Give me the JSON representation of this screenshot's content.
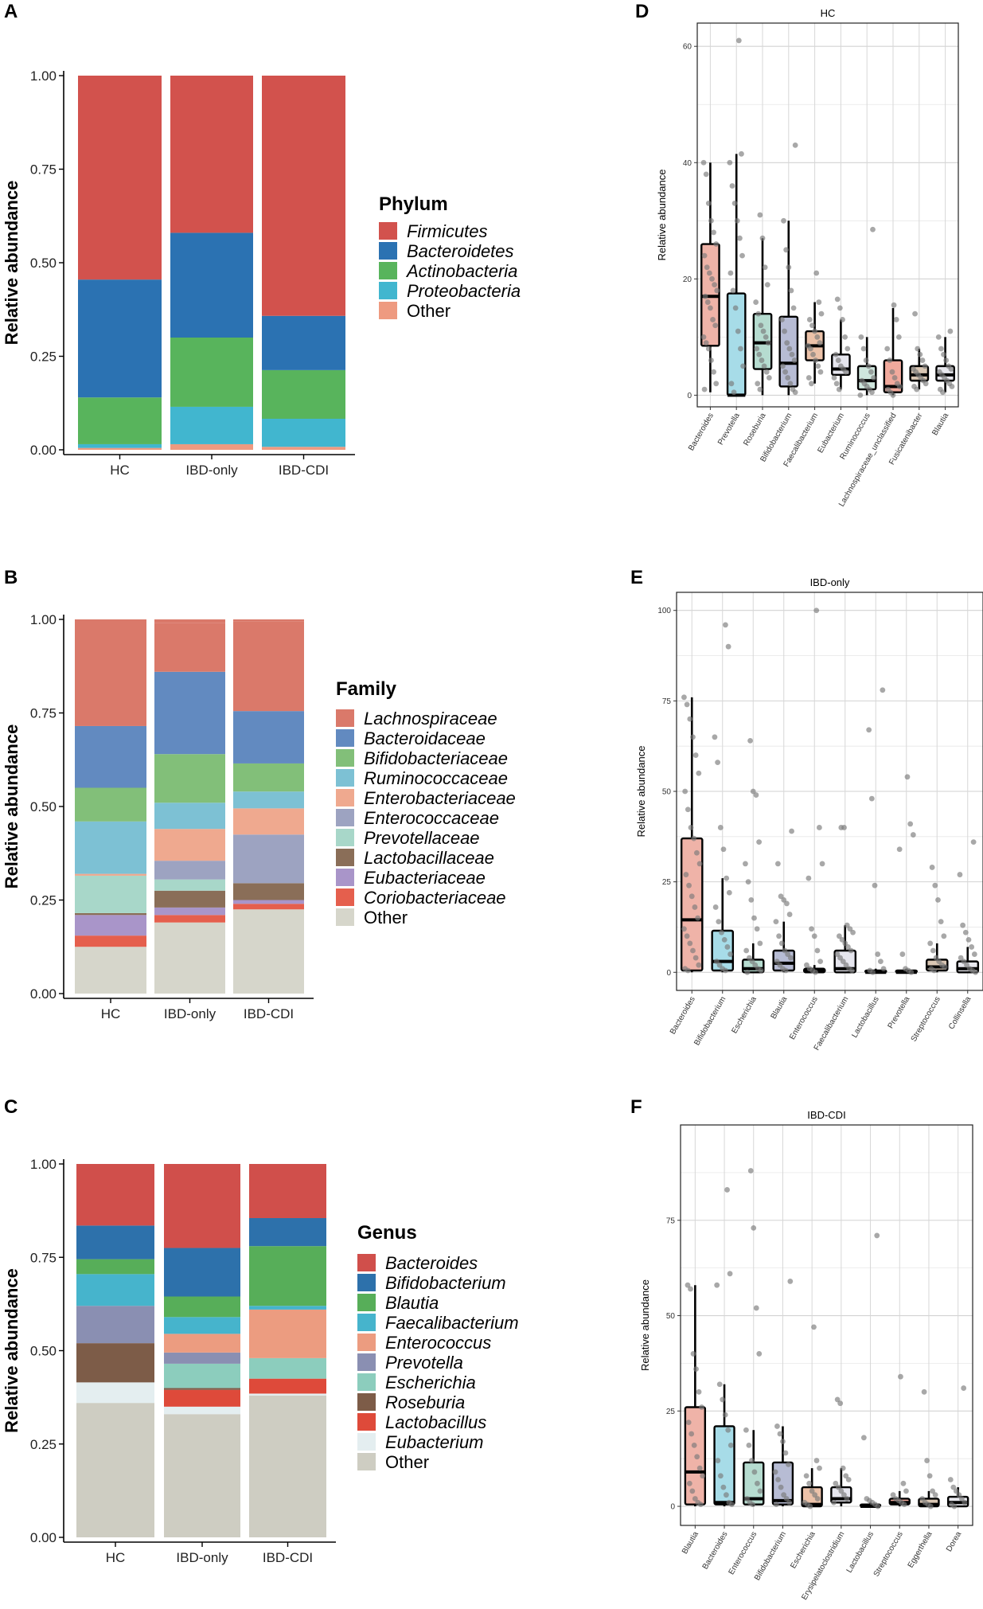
{
  "chart_data": [
    {
      "panel": "A",
      "type": "bar",
      "stacked": true,
      "ylabel": "Relative abundance",
      "ylim": [
        0,
        1
      ],
      "yticks": [
        "0.00",
        "0.25",
        "0.50",
        "0.75",
        "1.00"
      ],
      "categories": [
        "HC",
        "IBD-only",
        "IBD-CDI"
      ],
      "legend_title": "Phylum",
      "series": [
        {
          "name": "Other",
          "color": "#ee9a80",
          "values": [
            0.005,
            0.015,
            0.008
          ]
        },
        {
          "name": "Proteobacteria",
          "color": "#41b6cf",
          "values": [
            0.01,
            0.1,
            0.075
          ]
        },
        {
          "name": "Actinobacteria",
          "color": "#58b45c",
          "values": [
            0.125,
            0.185,
            0.13
          ]
        },
        {
          "name": "Bacteroidetes",
          "color": "#2b72b2",
          "values": [
            0.315,
            0.28,
            0.145
          ]
        },
        {
          "name": "Firmicutes",
          "color": "#d2524d",
          "values": [
            0.545,
            0.42,
            0.642
          ]
        }
      ]
    },
    {
      "panel": "B",
      "type": "bar",
      "stacked": true,
      "ylabel": "Relative abundance",
      "ylim": [
        0,
        1
      ],
      "yticks": [
        "0.00",
        "0.25",
        "0.50",
        "0.75",
        "1.00"
      ],
      "categories": [
        "HC",
        "IBD-only",
        "IBD-CDI"
      ],
      "legend_title": "Family",
      "series": [
        {
          "name": "Other",
          "color": "#d6d6cb",
          "values": [
            0.125,
            0.19,
            0.225
          ]
        },
        {
          "name": "Coriobacteriaceae",
          "color": "#e55f4d",
          "values": [
            0.03,
            0.02,
            0.015
          ]
        },
        {
          "name": "Eubacteriaceae",
          "color": "#a995c9",
          "values": [
            0.055,
            0.02,
            0.01
          ]
        },
        {
          "name": "Lactobacillaceae",
          "color": "#8a6e58",
          "values": [
            0.005,
            0.045,
            0.045
          ]
        },
        {
          "name": "Prevotellaceae",
          "color": "#a8d7c9",
          "values": [
            0.1,
            0.03,
            0.0
          ]
        },
        {
          "name": "Enterococcaceae",
          "color": "#9da3c1",
          "values": [
            0.0,
            0.05,
            0.13
          ]
        },
        {
          "name": "Enterobacteriaceae",
          "color": "#efa98f",
          "values": [
            0.005,
            0.085,
            0.07
          ]
        },
        {
          "name": "Ruminococcaceae",
          "color": "#7dc1d4",
          "values": [
            0.14,
            0.07,
            0.045
          ]
        },
        {
          "name": "Bifidobacteriaceae",
          "color": "#82bf79",
          "values": [
            0.09,
            0.13,
            0.075
          ]
        },
        {
          "name": "Bacteroidaceae",
          "color": "#628ac0",
          "values": [
            0.165,
            0.22,
            0.14
          ]
        },
        {
          "name": "Lachnospiraceae",
          "color": "#da796a",
          "values": [
            0.285,
            0.13,
            0.24
          ]
        }
      ]
    },
    {
      "panel": "C",
      "type": "bar",
      "stacked": true,
      "ylabel": "Relative abundance",
      "ylim": [
        0,
        1
      ],
      "yticks": [
        "0.00",
        "0.25",
        "0.50",
        "0.75",
        "1.00"
      ],
      "categories": [
        "HC",
        "IBD-only",
        "IBD-CDI"
      ],
      "legend_title": "Genus",
      "series": [
        {
          "name": "Other",
          "color": "#cecdc2",
          "values": [
            0.36,
            0.33,
            0.38
          ]
        },
        {
          "name": "Eubacterium",
          "color": "#e4eef0",
          "values": [
            0.055,
            0.02,
            0.005
          ]
        },
        {
          "name": "Lactobacillus",
          "color": "#de4a3a",
          "values": [
            0.0,
            0.045,
            0.04
          ]
        },
        {
          "name": "Roseburia",
          "color": "#7d5c48",
          "values": [
            0.105,
            0.005,
            0.0
          ]
        },
        {
          "name": "Escherichia",
          "color": "#8ccdbd",
          "values": [
            0.0,
            0.065,
            0.055
          ]
        },
        {
          "name": "Prevotella",
          "color": "#8a8fb2",
          "values": [
            0.1,
            0.03,
            0.0
          ]
        },
        {
          "name": "Enterococcus",
          "color": "#ec9c80",
          "values": [
            0.0,
            0.05,
            0.13
          ]
        },
        {
          "name": "Faecalibacterium",
          "color": "#46b4cc",
          "values": [
            0.085,
            0.045,
            0.01
          ]
        },
        {
          "name": "Blautia",
          "color": "#57ae59",
          "values": [
            0.04,
            0.055,
            0.16
          ]
        },
        {
          "name": "Bifidobacterium",
          "color": "#2d71ab",
          "values": [
            0.09,
            0.13,
            0.075
          ]
        },
        {
          "name": "Bacteroides",
          "color": "#d04f4b",
          "values": [
            0.165,
            0.225,
            0.145
          ]
        }
      ]
    },
    {
      "panel": "D",
      "type": "box",
      "title": "HC",
      "ylabel": "Relative abundance",
      "ylim": [
        -2,
        64
      ],
      "yticks": [
        0,
        20,
        40,
        60
      ],
      "categories": [
        "Bacteroides",
        "Prevotella",
        "Roseburia",
        "Bifidobacterium",
        "Faecalibacterium",
        "Eubacterium",
        "Ruminococcus",
        "Lachnospiraceae_unclassified",
        "Fusicatenibacter",
        "Blautia"
      ],
      "boxes": [
        {
          "fill": "#efb3a8",
          "q1": 8.5,
          "median": 17,
          "q3": 26,
          "low": 0.5,
          "high": 40,
          "points": [
            40,
            38,
            33,
            30,
            28,
            26,
            24,
            22,
            21,
            20,
            19,
            18,
            17,
            16,
            15,
            13,
            12,
            10,
            9,
            8,
            6,
            4,
            2,
            1
          ]
        },
        {
          "fill": "#a7dce8",
          "q1": 0,
          "median": 0,
          "q3": 17.5,
          "low": 0,
          "high": 41.5,
          "points": [
            61,
            41.5,
            40,
            36,
            33,
            30,
            27,
            24,
            21,
            18,
            15,
            11,
            8,
            5,
            2,
            0.5
          ]
        },
        {
          "fill": "#b6dcd0",
          "q1": 4.5,
          "median": 9,
          "q3": 14,
          "low": 0,
          "high": 27,
          "points": [
            31,
            27,
            22,
            19,
            16,
            14,
            12,
            11,
            10,
            9,
            8,
            7,
            6,
            5,
            4,
            3,
            2,
            1
          ]
        },
        {
          "fill": "#b7bcd4",
          "q1": 1.5,
          "median": 5.5,
          "q3": 13.5,
          "low": 0,
          "high": 30,
          "points": [
            43,
            30,
            25,
            22,
            18,
            15,
            13,
            11,
            9,
            8,
            7,
            6,
            5,
            4,
            3,
            2,
            1,
            0.5
          ]
        },
        {
          "fill": "#ecc2a9",
          "q1": 6,
          "median": 8.5,
          "q3": 11,
          "low": 2,
          "high": 16,
          "points": [
            21,
            16,
            14,
            13,
            12,
            11,
            10,
            9,
            8.5,
            8,
            7,
            6,
            5,
            4,
            3,
            2
          ]
        },
        {
          "fill": "#e6e6ee",
          "q1": 3.5,
          "median": 4.5,
          "q3": 7,
          "low": 1,
          "high": 13,
          "points": [
            16.5,
            15,
            13,
            10,
            8,
            7,
            6,
            5,
            4.5,
            4,
            3,
            2,
            1
          ]
        },
        {
          "fill": "#cfe6dd",
          "q1": 1,
          "median": 2.5,
          "q3": 5,
          "low": 0,
          "high": 10,
          "points": [
            28.5,
            10,
            8,
            6,
            5,
            4,
            3,
            2.5,
            2,
            1.5,
            1,
            0.5,
            0
          ]
        },
        {
          "fill": "#f1a99c",
          "q1": 0.5,
          "median": 1.5,
          "q3": 6,
          "low": 0,
          "high": 15,
          "points": [
            15.5,
            13,
            10,
            8,
            6,
            4,
            3,
            2,
            1.5,
            1,
            0.5,
            0
          ]
        },
        {
          "fill": "#d9c6b3",
          "q1": 2.5,
          "median": 3.5,
          "q3": 5,
          "low": 1,
          "high": 8,
          "points": [
            14,
            8,
            7,
            6,
            5,
            4.5,
            4,
            3.5,
            3,
            2.5,
            2,
            1.5,
            1
          ]
        },
        {
          "fill": "#e8e8ee",
          "q1": 2.5,
          "median": 3.5,
          "q3": 5,
          "low": 0.5,
          "high": 10,
          "points": [
            11,
            10,
            8,
            7,
            6,
            5,
            4.5,
            4,
            3.5,
            3,
            2.5,
            2,
            1.5,
            1,
            0.5
          ]
        }
      ]
    },
    {
      "panel": "E",
      "type": "box",
      "title": "IBD-only",
      "ylabel": "Relative abundance",
      "ylim": [
        -5,
        105
      ],
      "yticks": [
        0,
        25,
        50,
        75,
        100
      ],
      "categories": [
        "Bacteroides",
        "Bifidobacterium",
        "Escherichia",
        "Blautia",
        "Enterococcus",
        "Faecalibacterium",
        "Lactobacillus",
        "Prevotella",
        "Streptococcus",
        "Collinsella"
      ],
      "boxes": [
        {
          "fill": "#efb3a8",
          "q1": 0.5,
          "median": 14.5,
          "q3": 37,
          "low": 0,
          "high": 76,
          "points": [
            76,
            74,
            70,
            65,
            60,
            55,
            50,
            45,
            40,
            37,
            33,
            30,
            27,
            24,
            21,
            18,
            15,
            12,
            10,
            8,
            6,
            4,
            2,
            1,
            0.5
          ]
        },
        {
          "fill": "#a7dce8",
          "q1": 0.5,
          "median": 3,
          "q3": 11.5,
          "low": 0,
          "high": 26,
          "points": [
            96,
            90,
            65,
            58,
            40,
            34,
            26,
            22,
            18,
            14,
            11,
            9,
            7,
            5,
            3,
            2,
            1,
            0.5
          ]
        },
        {
          "fill": "#b6dcd0",
          "q1": 0,
          "median": 1,
          "q3": 3.5,
          "low": 0,
          "high": 8,
          "points": [
            64,
            50,
            49,
            36,
            30,
            25,
            20,
            15,
            12,
            8,
            6,
            4,
            3,
            2,
            1,
            0.5,
            0
          ]
        },
        {
          "fill": "#b7bcd4",
          "q1": 0.5,
          "median": 2.5,
          "q3": 6,
          "low": 0,
          "high": 14,
          "points": [
            39,
            30,
            21,
            20,
            19,
            16,
            14,
            10,
            8,
            6,
            5,
            4,
            3,
            2,
            1,
            0.5
          ]
        },
        {
          "fill": "#ecc2a9",
          "q1": 0,
          "median": 0.5,
          "q3": 1,
          "low": 0,
          "high": 2,
          "points": [
            100,
            40,
            30,
            26,
            12,
            10,
            6,
            3,
            2,
            1,
            0.5,
            0
          ]
        },
        {
          "fill": "#e6e6ee",
          "q1": 0,
          "median": 1,
          "q3": 6,
          "low": 0,
          "high": 13,
          "points": [
            40,
            40,
            13,
            12,
            11,
            10,
            9,
            8,
            7,
            6,
            5,
            4,
            3,
            2,
            1,
            0.5
          ]
        },
        {
          "fill": "#cfe6dd",
          "q1": 0,
          "median": 0,
          "q3": 0.5,
          "low": 0,
          "high": 1,
          "points": [
            78,
            67,
            48,
            24,
            5,
            3,
            1,
            0.5,
            0
          ]
        },
        {
          "fill": "#f1a99c",
          "q1": 0,
          "median": 0,
          "q3": 0.5,
          "low": 0,
          "high": 1,
          "points": [
            54,
            41,
            38,
            34,
            5,
            1,
            0.5,
            0
          ]
        },
        {
          "fill": "#d9c6b3",
          "q1": 0.5,
          "median": 1.5,
          "q3": 3.5,
          "low": 0,
          "high": 8,
          "points": [
            29,
            24,
            20,
            14,
            10,
            8,
            6,
            4,
            3,
            2,
            1.5,
            1,
            0.5
          ]
        },
        {
          "fill": "#e8e8ee",
          "q1": 0,
          "median": 1,
          "q3": 3,
          "low": 0,
          "high": 7,
          "points": [
            36,
            27,
            13,
            11,
            9,
            7,
            5,
            4,
            3,
            2,
            1,
            0.5,
            0
          ]
        }
      ]
    },
    {
      "panel": "F",
      "type": "box",
      "title": "IBD-CDI",
      "ylabel": "Relative abundance",
      "ylim": [
        -5,
        100
      ],
      "yticks": [
        0,
        25,
        50,
        75
      ],
      "categories": [
        "Blautia",
        "Bacteroides",
        "Enterococcus",
        "Bifidobacterium",
        "Escherichia",
        "Erysipelatoclostridium",
        "Lactobacillus",
        "Streptococcus",
        "Eggerthella",
        "Dorea"
      ],
      "boxes": [
        {
          "fill": "#efb3a8",
          "q1": 0.5,
          "median": 9,
          "q3": 26,
          "low": 0,
          "high": 58,
          "points": [
            58,
            57,
            40,
            36,
            30,
            26,
            22,
            19,
            16,
            13,
            10,
            8,
            6,
            4,
            2,
            1,
            0.5
          ]
        },
        {
          "fill": "#a7dce8",
          "q1": 0.5,
          "median": 1,
          "q3": 21,
          "low": 0,
          "high": 32,
          "points": [
            83,
            61,
            58,
            32,
            28,
            24,
            20,
            16,
            12,
            8,
            5,
            3,
            1,
            0.5
          ]
        },
        {
          "fill": "#b6dcd0",
          "q1": 0.5,
          "median": 2,
          "q3": 11.5,
          "low": 0,
          "high": 20,
          "points": [
            88,
            73,
            52,
            40,
            20,
            16,
            12,
            9,
            6,
            4,
            2,
            1,
            0.5
          ]
        },
        {
          "fill": "#b7bcd4",
          "q1": 0.5,
          "median": 1.5,
          "q3": 11.5,
          "low": 0,
          "high": 21,
          "points": [
            59,
            21,
            19,
            17,
            14,
            11,
            9,
            7,
            5,
            3,
            2,
            1,
            0.5
          ]
        },
        {
          "fill": "#ecc2a9",
          "q1": 0,
          "median": 0.5,
          "q3": 5,
          "low": 0,
          "high": 10,
          "points": [
            47,
            12,
            10,
            8,
            6,
            4,
            3,
            2,
            1,
            0.5,
            0
          ]
        },
        {
          "fill": "#e6e6ee",
          "q1": 1,
          "median": 2,
          "q3": 5,
          "low": 0,
          "high": 10,
          "points": [
            28,
            27,
            10,
            8,
            7,
            6,
            5,
            4,
            3,
            2,
            1
          ]
        },
        {
          "fill": "#cfe6dd",
          "q1": 0,
          "median": 0,
          "q3": 0.5,
          "low": 0,
          "high": 1,
          "points": [
            71,
            18,
            2,
            1.5,
            1,
            0.5,
            0
          ]
        },
        {
          "fill": "#f1a99c",
          "q1": 0.5,
          "median": 1,
          "q3": 2,
          "low": 0,
          "high": 4,
          "points": [
            34,
            6,
            4,
            3,
            2,
            1.5,
            1,
            0.5
          ]
        },
        {
          "fill": "#d9c6b3",
          "q1": 0,
          "median": 0.5,
          "q3": 2,
          "low": 0,
          "high": 4,
          "points": [
            30,
            12,
            8,
            4,
            3,
            2,
            1,
            0.5,
            0
          ]
        },
        {
          "fill": "#e8e8ee",
          "q1": 0,
          "median": 1,
          "q3": 2.5,
          "low": 0,
          "high": 5,
          "points": [
            31,
            7,
            5,
            4,
            3,
            2,
            1,
            0.5,
            0
          ]
        }
      ]
    }
  ]
}
